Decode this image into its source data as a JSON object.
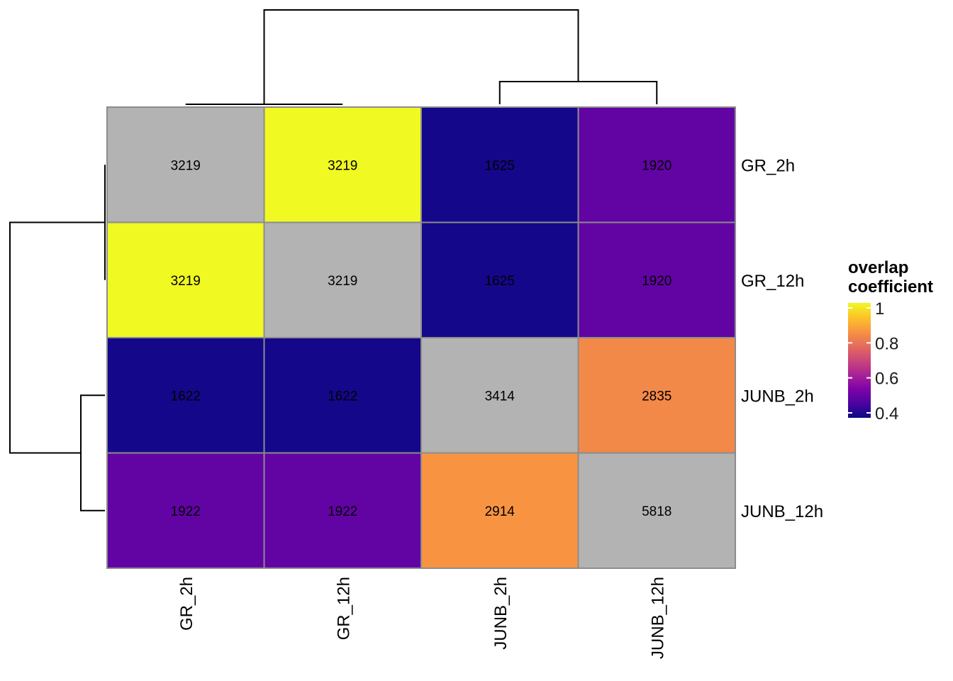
{
  "chart_data": {
    "type": "heatmap",
    "rows": [
      "GR_2h",
      "GR_12h",
      "JUNB_2h",
      "JUNB_12h"
    ],
    "columns": [
      "GR_2h",
      "GR_12h",
      "JUNB_2h",
      "JUNB_12h"
    ],
    "cell_labels": [
      [
        "3219",
        "3219",
        "1625",
        "1920"
      ],
      [
        "3219",
        "3219",
        "1625",
        "1920"
      ],
      [
        "1622",
        "1622",
        "3414",
        "2835"
      ],
      [
        "1922",
        "1922",
        "2914",
        "5818"
      ]
    ],
    "values": [
      [
        null,
        1.0,
        0.41,
        0.51
      ],
      [
        1.0,
        null,
        0.41,
        0.51
      ],
      [
        0.41,
        0.41,
        null,
        0.83
      ],
      [
        0.51,
        0.51,
        0.85,
        null
      ]
    ],
    "diagonal_color": "#b3b3b3",
    "grid_color": "#8c8c8c",
    "color_scale": {
      "name": "plasma",
      "range": [
        0.4,
        1.0
      ],
      "stops": [
        "#0d0887",
        "#4b03a1",
        "#7d03a8",
        "#a82296",
        "#cb4679",
        "#e56b5d",
        "#f89441",
        "#fdc328",
        "#f0f921"
      ]
    },
    "legend": {
      "title_line1": "overlap",
      "title_line2": "coefficient",
      "ticks": [
        {
          "value": 1.0,
          "label": "1"
        },
        {
          "value": 0.8,
          "label": "0.8"
        },
        {
          "value": 0.6,
          "label": "0.6"
        },
        {
          "value": 0.4,
          "label": "0.4"
        }
      ],
      "position": "right"
    },
    "row_dendrogram": true,
    "col_dendrogram": true
  }
}
